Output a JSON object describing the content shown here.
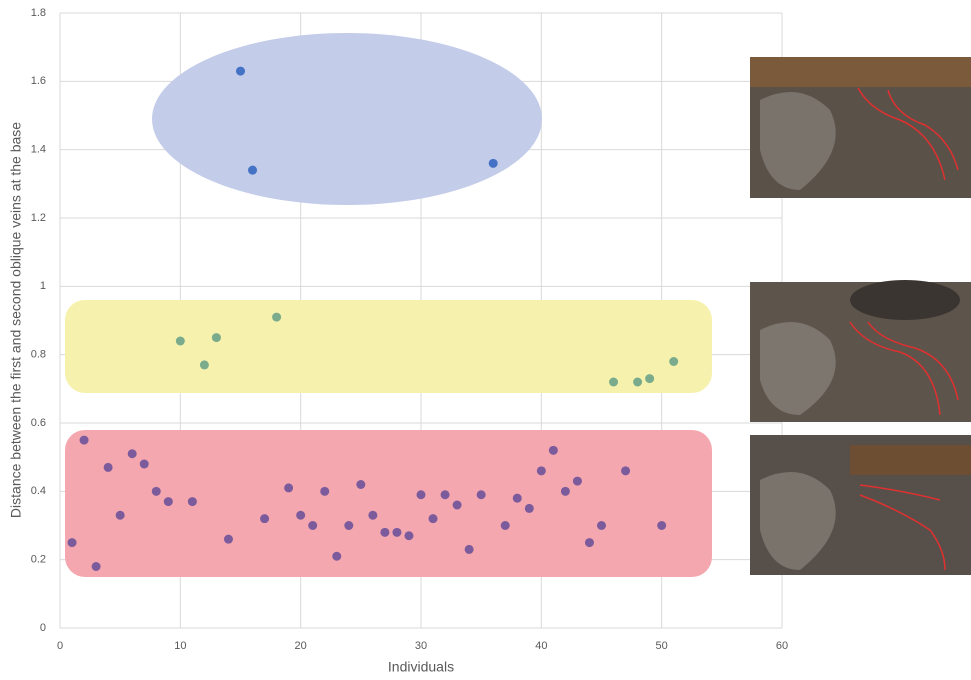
{
  "chart_data": {
    "type": "scatter",
    "x_label": "Individuals",
    "y_label": "Distance between the first and second oblique veins at the base",
    "xlim": [
      0,
      60
    ],
    "xticks": [
      0,
      10,
      20,
      30,
      40,
      50,
      60
    ],
    "ylim": [
      0,
      1.8
    ],
    "yticks": [
      0,
      0.2,
      0.4,
      0.6,
      0.8,
      1,
      1.2,
      1.4,
      1.6,
      1.8
    ],
    "grid": true,
    "series": [
      {
        "color": "#4472c4",
        "x": [
          15,
          16,
          36
        ],
        "values": [
          1.63,
          1.34,
          1.36
        ]
      },
      {
        "color": "#7aab8c",
        "x": [
          10,
          12,
          13,
          18,
          46,
          48,
          49,
          51
        ],
        "values": [
          0.84,
          0.77,
          0.85,
          0.91,
          0.72,
          0.72,
          0.73,
          0.78
        ]
      },
      {
        "color": "#7b5b9c",
        "x": [
          1,
          2,
          3,
          4,
          5,
          6,
          7,
          8,
          9,
          11,
          14,
          17,
          19,
          20,
          21,
          22,
          23,
          24,
          25,
          26,
          27,
          28,
          29,
          30,
          31,
          32,
          33,
          34,
          35,
          37,
          38,
          39,
          40,
          41,
          42,
          43,
          44,
          45,
          47,
          50
        ],
        "values": [
          0.25,
          0.55,
          0.18,
          0.47,
          0.33,
          0.51,
          0.48,
          0.4,
          0.37,
          0.37,
          0.26,
          0.32,
          0.41,
          0.33,
          0.3,
          0.4,
          0.21,
          0.3,
          0.42,
          0.33,
          0.28,
          0.28,
          0.27,
          0.39,
          0.32,
          0.39,
          0.36,
          0.23,
          0.39,
          0.3,
          0.38,
          0.35,
          0.46,
          0.52,
          0.4,
          0.43,
          0.25,
          0.3,
          0.46,
          0.3
        ]
      }
    ]
  }
}
